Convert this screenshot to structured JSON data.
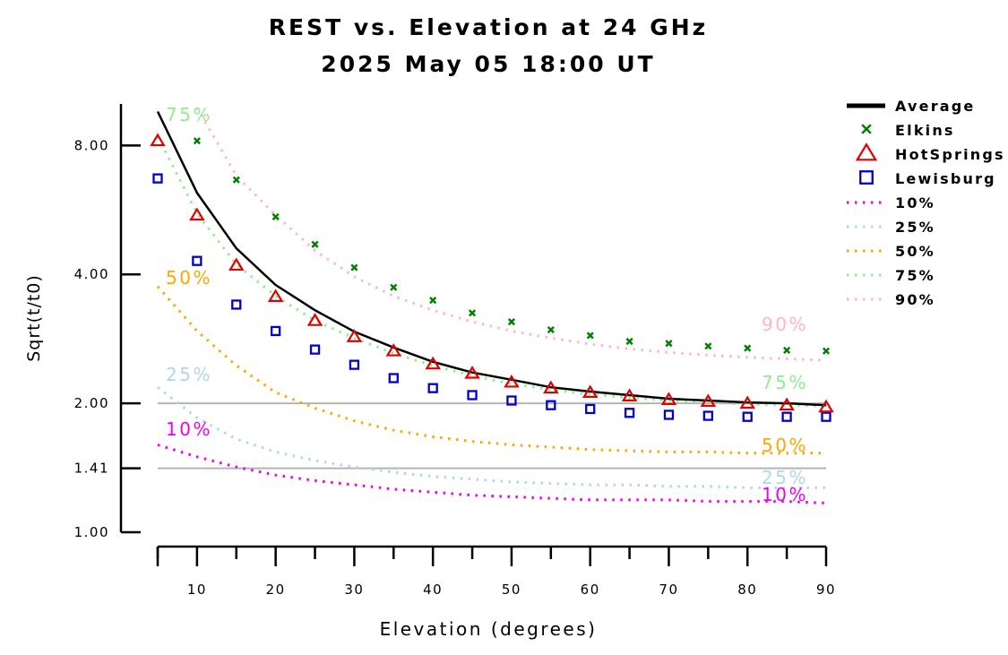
{
  "chart_data": {
    "type": "line",
    "title": "REST vs. Elevation at 24 GHz",
    "subtitle": "2025 May 05 18:00 UT",
    "xlabel": "Elevation (degrees)",
    "ylabel": "Sqrt(t/t0)",
    "xlim": [
      5,
      90
    ],
    "ylim": [
      1.0,
      10.0
    ],
    "y_scale": "log",
    "x_ticks": [
      10,
      20,
      30,
      40,
      50,
      60,
      70,
      80,
      90
    ],
    "y_ticks": [
      {
        "value": 1.0,
        "label": "1.00"
      },
      {
        "value": 1.41,
        "label": "1.41"
      },
      {
        "value": 2.0,
        "label": "2.00"
      },
      {
        "value": 4.0,
        "label": "4.00"
      },
      {
        "value": 8.0,
        "label": "8.00"
      }
    ],
    "reference_lines": [
      1.41,
      2.0
    ],
    "legend_position": "right",
    "x": [
      5,
      10,
      15,
      20,
      25,
      30,
      35,
      40,
      45,
      50,
      55,
      60,
      65,
      70,
      75,
      80,
      85,
      90
    ],
    "series": [
      {
        "name": "Average",
        "kind": "line",
        "color": "#000000",
        "values": [
          9.6,
          6.2,
          4.6,
          3.78,
          3.3,
          2.94,
          2.7,
          2.5,
          2.36,
          2.27,
          2.18,
          2.13,
          2.09,
          2.05,
          2.03,
          2.01,
          2.0,
          1.98
        ]
      },
      {
        "name": "Elkins",
        "kind": "marker-x",
        "color": "#008000",
        "values": [
          null,
          8.2,
          6.65,
          5.45,
          4.7,
          4.15,
          3.73,
          3.48,
          3.25,
          3.1,
          2.97,
          2.88,
          2.79,
          2.76,
          2.72,
          2.69,
          2.66,
          2.65
        ]
      },
      {
        "name": "HotSprings",
        "kind": "marker-triangle",
        "color": "#e00000",
        "values": [
          8.2,
          5.5,
          4.2,
          3.55,
          3.12,
          2.86,
          2.65,
          2.47,
          2.35,
          2.24,
          2.17,
          2.12,
          2.08,
          2.04,
          2.02,
          2.0,
          1.98,
          1.96
        ]
      },
      {
        "name": "Lewisburg",
        "kind": "marker-square",
        "color": "#0000cc",
        "values": [
          6.7,
          4.3,
          3.4,
          2.95,
          2.67,
          2.46,
          2.29,
          2.17,
          2.09,
          2.03,
          1.98,
          1.94,
          1.9,
          1.88,
          1.87,
          1.86,
          1.86,
          1.86
        ]
      },
      {
        "name": "10%",
        "kind": "dotted",
        "color": "#ee00ee",
        "values": [
          1.6,
          1.5,
          1.42,
          1.36,
          1.32,
          1.29,
          1.26,
          1.24,
          1.22,
          1.21,
          1.2,
          1.19,
          1.19,
          1.19,
          1.18,
          1.18,
          1.18,
          1.17
        ]
      },
      {
        "name": "25%",
        "kind": "dotted",
        "color": "#add8e6",
        "values": [
          2.18,
          1.85,
          1.65,
          1.54,
          1.47,
          1.42,
          1.38,
          1.35,
          1.33,
          1.31,
          1.3,
          1.29,
          1.29,
          1.28,
          1.28,
          1.27,
          1.27,
          1.27
        ]
      },
      {
        "name": "50%",
        "kind": "dotted",
        "color": "#ffa500",
        "values": [
          3.75,
          2.95,
          2.45,
          2.12,
          1.95,
          1.82,
          1.73,
          1.67,
          1.63,
          1.6,
          1.58,
          1.56,
          1.55,
          1.54,
          1.54,
          1.53,
          1.53,
          1.53
        ]
      },
      {
        "name": "75%",
        "kind": "dotted",
        "color": "#90ee90",
        "values": [
          8.4,
          5.55,
          4.22,
          3.56,
          3.12,
          2.84,
          2.62,
          2.45,
          2.32,
          2.22,
          2.15,
          2.1,
          2.06,
          2.03,
          2.01,
          1.99,
          1.98,
          1.97
        ]
      },
      {
        "name": "90%",
        "kind": "dotted",
        "color": "#ffb6c1",
        "values": [
          null,
          9.8,
          6.8,
          5.5,
          4.55,
          3.95,
          3.56,
          3.3,
          3.1,
          2.95,
          2.84,
          2.75,
          2.68,
          2.63,
          2.59,
          2.56,
          2.54,
          2.52
        ]
      }
    ],
    "curve_labels": [
      {
        "series": "75%",
        "text": "75%",
        "side": "left"
      },
      {
        "series": "50%",
        "text": "50%",
        "side": "left"
      },
      {
        "series": "25%",
        "text": "25%",
        "side": "left"
      },
      {
        "series": "10%",
        "text": "10%",
        "side": "left"
      },
      {
        "series": "90%",
        "text": "90%",
        "side": "right"
      },
      {
        "series": "75%",
        "text": "75%",
        "side": "right"
      },
      {
        "series": "50%",
        "text": "50%",
        "side": "right"
      },
      {
        "series": "25%",
        "text": "25%",
        "side": "right"
      },
      {
        "series": "10%",
        "text": "10%",
        "side": "right"
      }
    ]
  }
}
